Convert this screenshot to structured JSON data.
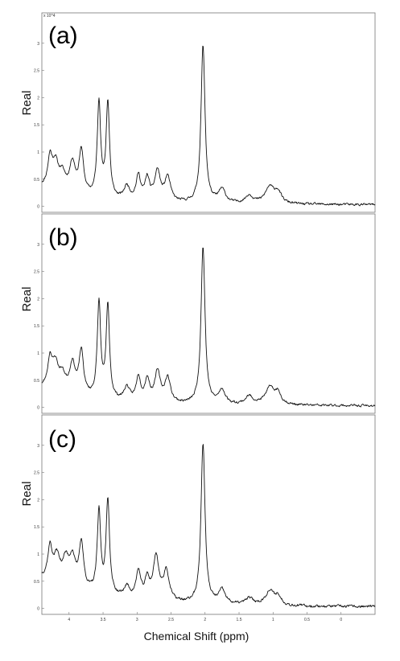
{
  "chart_data": {
    "type": "line",
    "xlabel": "Chemical Shift (ppm)",
    "x_direction": "reversed",
    "xlim": [
      4.4,
      -0.5
    ],
    "x_ticks": [
      4,
      3.5,
      3,
      2.5,
      2,
      1.5,
      1,
      0.5,
      0
    ],
    "ylim": [
      -0.05,
      3.5
    ],
    "y_exponent_label": "x 10^4",
    "y_ticks": [
      0,
      0.5,
      1,
      1.5,
      2,
      2.5,
      3
    ],
    "panels": [
      {
        "label": "(a)",
        "ylabel": "Real",
        "peaks": [
          {
            "ppm": 4.28,
            "amp": 0.55,
            "w": 0.04
          },
          {
            "ppm": 4.2,
            "amp": 0.45,
            "w": 0.05
          },
          {
            "ppm": 4.1,
            "amp": 0.3,
            "w": 0.06
          },
          {
            "ppm": 3.95,
            "amp": 0.55,
            "w": 0.05
          },
          {
            "ppm": 3.82,
            "amp": 0.8,
            "w": 0.04
          },
          {
            "ppm": 3.56,
            "amp": 1.75,
            "w": 0.03
          },
          {
            "ppm": 3.43,
            "amp": 1.75,
            "w": 0.03
          },
          {
            "ppm": 3.15,
            "amp": 0.25,
            "w": 0.05
          },
          {
            "ppm": 2.98,
            "amp": 0.45,
            "w": 0.04
          },
          {
            "ppm": 2.85,
            "amp": 0.4,
            "w": 0.04
          },
          {
            "ppm": 2.7,
            "amp": 0.55,
            "w": 0.05
          },
          {
            "ppm": 2.55,
            "amp": 0.45,
            "w": 0.05
          },
          {
            "ppm": 2.03,
            "amp": 2.9,
            "w": 0.035
          },
          {
            "ppm": 1.75,
            "amp": 0.25,
            "w": 0.06
          },
          {
            "ppm": 1.35,
            "amp": 0.15,
            "w": 0.07
          },
          {
            "ppm": 1.05,
            "amp": 0.3,
            "w": 0.08
          },
          {
            "ppm": 0.93,
            "amp": 0.2,
            "w": 0.06
          }
        ],
        "baseline": {
          "start": 0.35,
          "end": 0.03,
          "decay": 1.4
        },
        "noise": 0.035,
        "seed": 11
      },
      {
        "label": "(b)",
        "ylabel": "Real",
        "peaks": [
          {
            "ppm": 4.28,
            "amp": 0.55,
            "w": 0.04
          },
          {
            "ppm": 4.2,
            "amp": 0.45,
            "w": 0.05
          },
          {
            "ppm": 4.1,
            "amp": 0.3,
            "w": 0.06
          },
          {
            "ppm": 3.95,
            "amp": 0.55,
            "w": 0.05
          },
          {
            "ppm": 3.82,
            "amp": 0.8,
            "w": 0.04
          },
          {
            "ppm": 3.56,
            "amp": 1.75,
            "w": 0.03
          },
          {
            "ppm": 3.43,
            "amp": 1.7,
            "w": 0.03
          },
          {
            "ppm": 3.15,
            "amp": 0.25,
            "w": 0.05
          },
          {
            "ppm": 2.98,
            "amp": 0.45,
            "w": 0.04
          },
          {
            "ppm": 2.85,
            "amp": 0.4,
            "w": 0.04
          },
          {
            "ppm": 2.7,
            "amp": 0.55,
            "w": 0.05
          },
          {
            "ppm": 2.55,
            "amp": 0.45,
            "w": 0.05
          },
          {
            "ppm": 2.03,
            "amp": 2.9,
            "w": 0.035
          },
          {
            "ppm": 1.75,
            "amp": 0.25,
            "w": 0.06
          },
          {
            "ppm": 1.35,
            "amp": 0.15,
            "w": 0.07
          },
          {
            "ppm": 1.05,
            "amp": 0.3,
            "w": 0.08
          },
          {
            "ppm": 0.93,
            "amp": 0.2,
            "w": 0.06
          }
        ],
        "baseline": {
          "start": 0.35,
          "end": 0.03,
          "decay": 1.4
        },
        "noise": 0.035,
        "seed": 23
      },
      {
        "label": "(c)",
        "ylabel": "Real",
        "peaks": [
          {
            "ppm": 4.28,
            "amp": 0.6,
            "w": 0.04
          },
          {
            "ppm": 4.18,
            "amp": 0.45,
            "w": 0.05
          },
          {
            "ppm": 4.05,
            "amp": 0.45,
            "w": 0.06
          },
          {
            "ppm": 3.95,
            "amp": 0.5,
            "w": 0.05
          },
          {
            "ppm": 3.82,
            "amp": 0.85,
            "w": 0.04
          },
          {
            "ppm": 3.56,
            "amp": 1.5,
            "w": 0.03
          },
          {
            "ppm": 3.43,
            "amp": 1.75,
            "w": 0.03
          },
          {
            "ppm": 3.15,
            "amp": 0.2,
            "w": 0.05
          },
          {
            "ppm": 2.98,
            "amp": 0.5,
            "w": 0.04
          },
          {
            "ppm": 2.85,
            "amp": 0.35,
            "w": 0.04
          },
          {
            "ppm": 2.72,
            "amp": 0.8,
            "w": 0.05
          },
          {
            "ppm": 2.57,
            "amp": 0.55,
            "w": 0.05
          },
          {
            "ppm": 2.03,
            "amp": 2.95,
            "w": 0.035
          },
          {
            "ppm": 1.75,
            "amp": 0.25,
            "w": 0.06
          },
          {
            "ppm": 1.35,
            "amp": 0.12,
            "w": 0.07
          },
          {
            "ppm": 1.05,
            "amp": 0.25,
            "w": 0.08
          },
          {
            "ppm": 0.93,
            "amp": 0.15,
            "w": 0.06
          }
        ],
        "baseline": {
          "start": 0.55,
          "end": 0.03,
          "decay": 1.1
        },
        "noise": 0.04,
        "seed": 37
      }
    ]
  }
}
